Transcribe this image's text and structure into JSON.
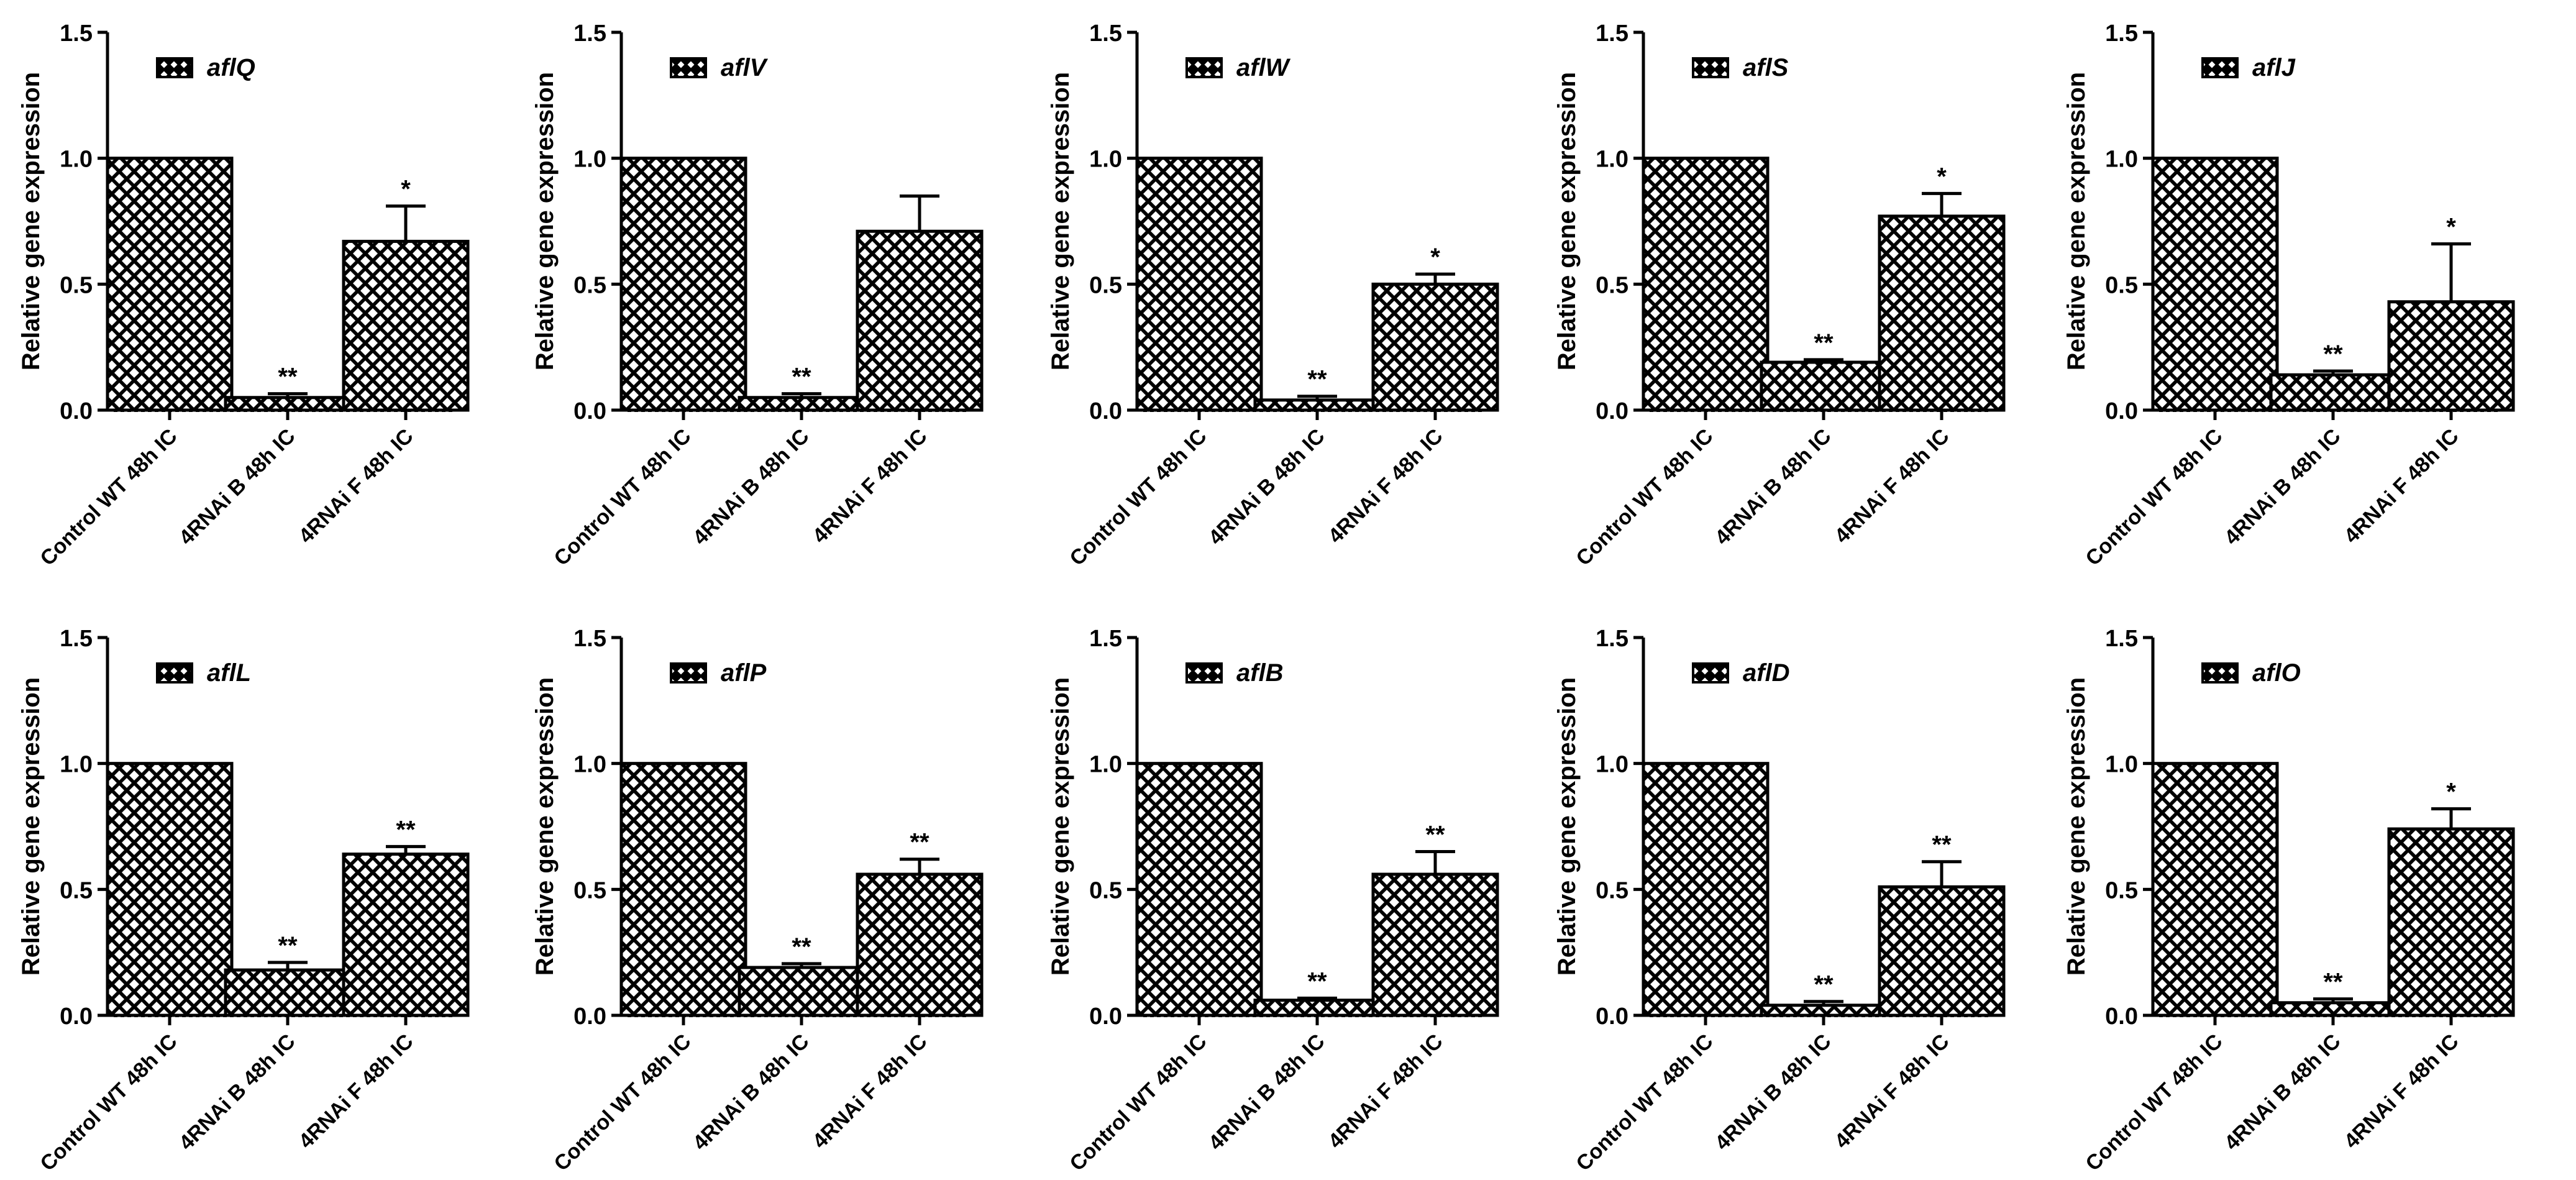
{
  "chart_data": [
    {
      "type": "bar",
      "title": "",
      "ylabel": "Relative gene expression",
      "xlabel": "",
      "ylim": [
        0,
        1.5
      ],
      "yticks": [
        "0.0",
        "0.5",
        "1.0",
        "1.5"
      ],
      "categories": [
        "Control WT 48h IC",
        "4RNAi B 48h IC",
        "4RNAi F 48h IC"
      ],
      "legend": "aflQ",
      "fill_pattern": "crosshatch-black",
      "values": [
        1.0,
        0.05,
        0.67
      ],
      "errors": [
        0,
        0.015,
        0.14
      ],
      "annotations": [
        "",
        "**",
        "*"
      ]
    },
    {
      "type": "bar",
      "title": "",
      "ylabel": "Relative gene expression",
      "xlabel": "",
      "ylim": [
        0,
        1.5
      ],
      "yticks": [
        "0.0",
        "0.5",
        "1.0",
        "1.5"
      ],
      "categories": [
        "Control WT 48h IC",
        "4RNAi B 48h IC",
        "4RNAi F 48h IC"
      ],
      "legend": "aflV",
      "fill_pattern": "crosshatch-black",
      "values": [
        1.0,
        0.05,
        0.71
      ],
      "errors": [
        0,
        0.015,
        0.14
      ],
      "annotations": [
        "",
        "**",
        ""
      ]
    },
    {
      "type": "bar",
      "title": "",
      "ylabel": "Relative gene expression",
      "xlabel": "",
      "ylim": [
        0,
        1.5
      ],
      "yticks": [
        "0.0",
        "0.5",
        "1.0",
        "1.5"
      ],
      "categories": [
        "Control WT 48h IC",
        "4RNAi B 48h IC",
        "4RNAi F 48h IC"
      ],
      "legend": "aflW",
      "fill_pattern": "crosshatch-black",
      "values": [
        1.0,
        0.04,
        0.5
      ],
      "errors": [
        0,
        0.015,
        0.04
      ],
      "annotations": [
        "",
        "**",
        "*"
      ]
    },
    {
      "type": "bar",
      "title": "",
      "ylabel": "Relative gene expression",
      "xlabel": "",
      "ylim": [
        0,
        1.5
      ],
      "yticks": [
        "0.0",
        "0.5",
        "1.0",
        "1.5"
      ],
      "categories": [
        "Control WT 48h IC",
        "4RNAi B 48h IC",
        "4RNAi F 48h IC"
      ],
      "legend": "aflS",
      "fill_pattern": "crosshatch-black",
      "values": [
        1.0,
        0.19,
        0.77
      ],
      "errors": [
        0,
        0.01,
        0.09
      ],
      "annotations": [
        "",
        "**",
        "*"
      ]
    },
    {
      "type": "bar",
      "title": "",
      "ylabel": "Relative gene expression",
      "xlabel": "",
      "ylim": [
        0,
        1.5
      ],
      "yticks": [
        "0.0",
        "0.5",
        "1.0",
        "1.5"
      ],
      "categories": [
        "Control WT 48h IC",
        "4RNAi B 48h IC",
        "4RNAi F 48h IC"
      ],
      "legend": "aflJ",
      "fill_pattern": "crosshatch-black",
      "values": [
        1.0,
        0.14,
        0.43
      ],
      "errors": [
        0,
        0.015,
        0.23
      ],
      "annotations": [
        "",
        "**",
        "*"
      ]
    },
    {
      "type": "bar",
      "title": "",
      "ylabel": "Relative gene expression",
      "xlabel": "",
      "ylim": [
        0,
        1.5
      ],
      "yticks": [
        "0.0",
        "0.5",
        "1.0",
        "1.5"
      ],
      "categories": [
        "Control WT 48h IC",
        "4RNAi B 48h IC",
        "4RNAi F 48h IC"
      ],
      "legend": "aflL",
      "fill_pattern": "crosshatch-black",
      "values": [
        1.0,
        0.18,
        0.64
      ],
      "errors": [
        0,
        0.03,
        0.03
      ],
      "annotations": [
        "",
        "**",
        "**"
      ]
    },
    {
      "type": "bar",
      "title": "",
      "ylabel": "Relative gene expression",
      "xlabel": "",
      "ylim": [
        0,
        1.5
      ],
      "yticks": [
        "0.0",
        "0.5",
        "1.0",
        "1.5"
      ],
      "categories": [
        "Control WT 48h IC",
        "4RNAi B 48h IC",
        "4RNAi F 48h IC"
      ],
      "legend": "aflP",
      "fill_pattern": "crosshatch-black",
      "values": [
        1.0,
        0.19,
        0.56
      ],
      "errors": [
        0,
        0.015,
        0.06
      ],
      "annotations": [
        "",
        "**",
        "**"
      ]
    },
    {
      "type": "bar",
      "title": "",
      "ylabel": "Relative gene expression",
      "xlabel": "",
      "ylim": [
        0,
        1.5
      ],
      "yticks": [
        "0.0",
        "0.5",
        "1.0",
        "1.5"
      ],
      "categories": [
        "Control WT 48h IC",
        "4RNAi B 48h IC",
        "4RNAi F 48h IC"
      ],
      "legend": "aflB",
      "fill_pattern": "crosshatch-black",
      "values": [
        1.0,
        0.06,
        0.56
      ],
      "errors": [
        0,
        0.008,
        0.09
      ],
      "annotations": [
        "",
        "**",
        "**"
      ]
    },
    {
      "type": "bar",
      "title": "",
      "ylabel": "Relative gene expression",
      "xlabel": "",
      "ylim": [
        0,
        1.5
      ],
      "yticks": [
        "0.0",
        "0.5",
        "1.0",
        "1.5"
      ],
      "categories": [
        "Control WT 48h IC",
        "4RNAi B 48h IC",
        "4RNAi F 48h IC"
      ],
      "legend": "aflD",
      "fill_pattern": "crosshatch-black",
      "values": [
        1.0,
        0.04,
        0.51
      ],
      "errors": [
        0,
        0.015,
        0.1
      ],
      "annotations": [
        "",
        "**",
        "**"
      ]
    },
    {
      "type": "bar",
      "title": "",
      "ylabel": "Relative gene expression",
      "xlabel": "",
      "ylim": [
        0,
        1.5
      ],
      "yticks": [
        "0.0",
        "0.5",
        "1.0",
        "1.5"
      ],
      "categories": [
        "Control WT 48h IC",
        "4RNAi B 48h IC",
        "4RNAi F 48h IC"
      ],
      "legend": "aflO",
      "fill_pattern": "crosshatch-black",
      "values": [
        1.0,
        0.05,
        0.74
      ],
      "errors": [
        0,
        0.015,
        0.08
      ],
      "annotations": [
        "",
        "**",
        "*"
      ]
    }
  ]
}
